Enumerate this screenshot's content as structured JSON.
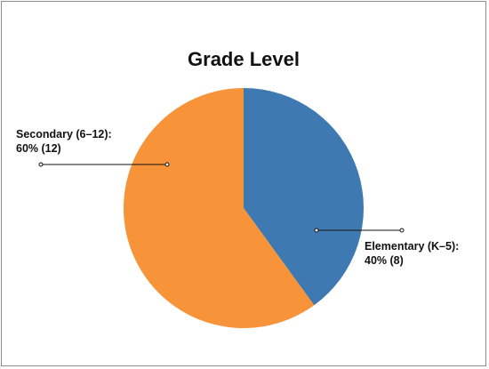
{
  "chart_data": {
    "type": "pie",
    "title": "Grade Level",
    "slices": [
      {
        "label_name": "Elementary (K–5):",
        "label_value": "40% (8)",
        "percent": 40,
        "count": 8,
        "color": "#3e79b1"
      },
      {
        "label_name": "Secondary (6–12):",
        "label_value": "60% (12)",
        "percent": 60,
        "count": 12,
        "color": "#f7943a"
      }
    ],
    "legend": "none",
    "start_angle_deg": 0,
    "direction": "clockwise"
  }
}
